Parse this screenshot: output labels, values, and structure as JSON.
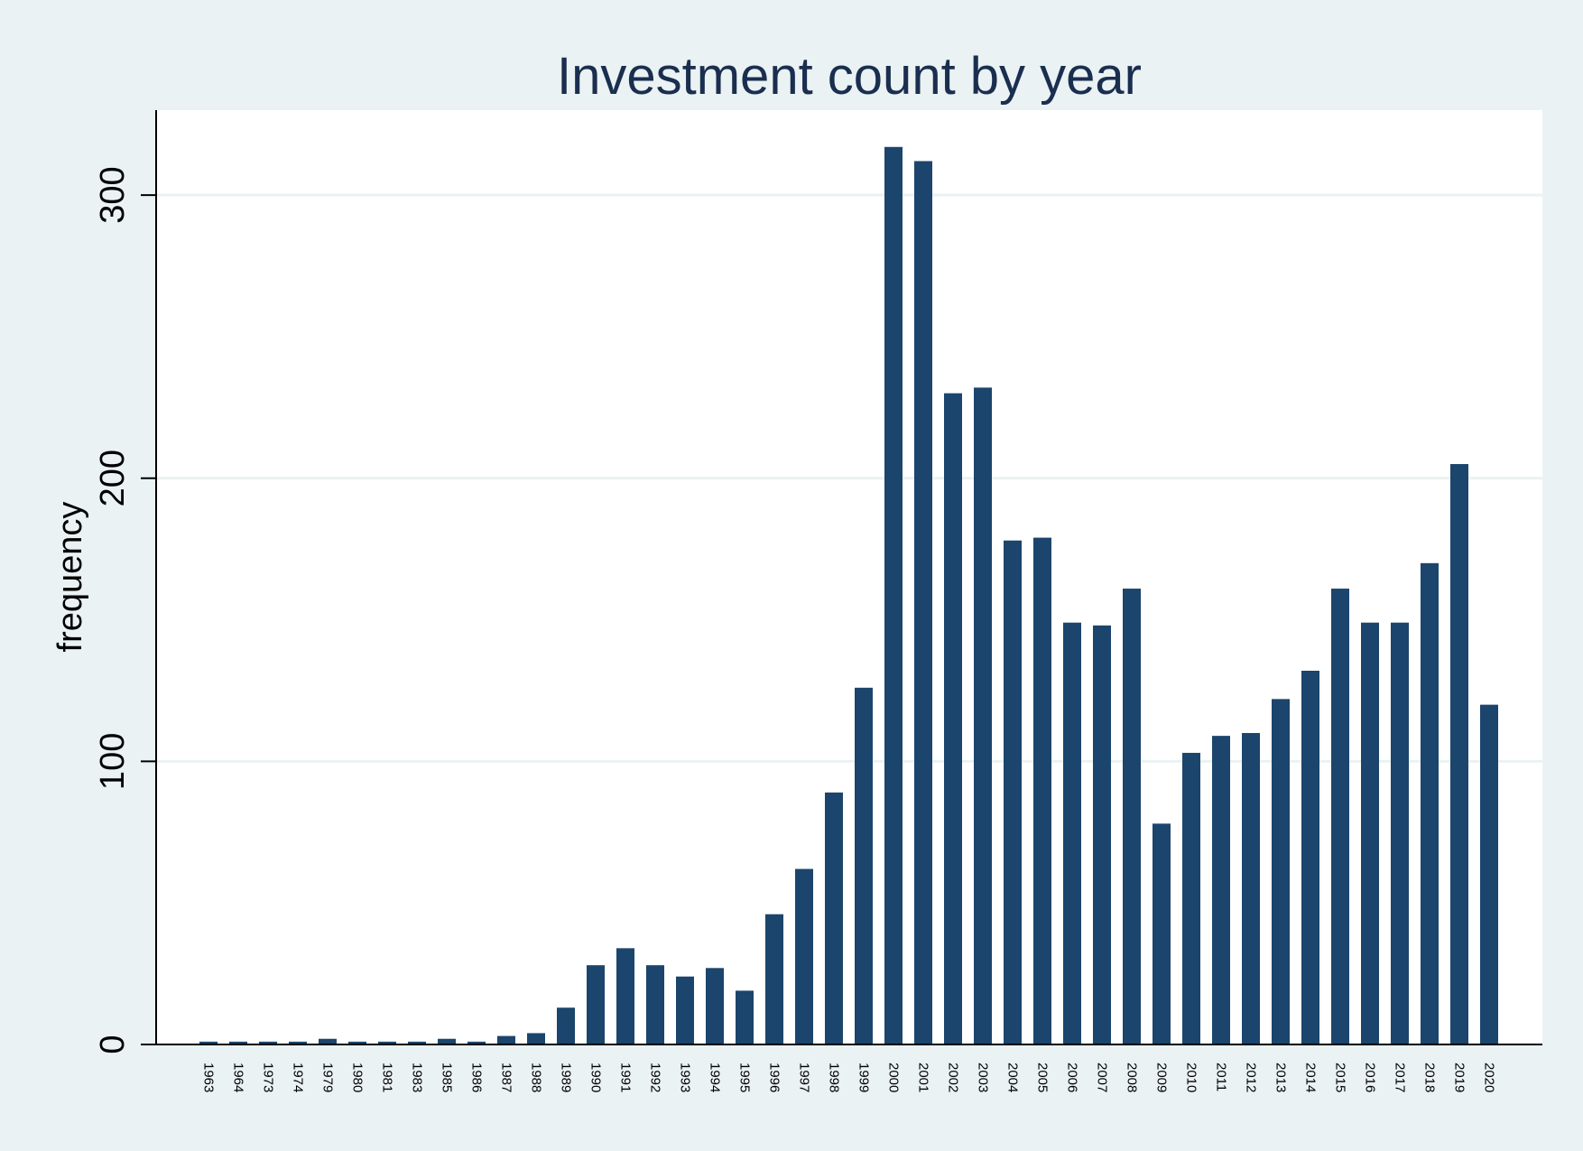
{
  "chart_data": {
    "type": "bar",
    "title": "Investment count by year",
    "xlabel": "",
    "ylabel": "frequency",
    "ylim": [
      0,
      330
    ],
    "yticks": [
      0,
      100,
      200,
      300
    ],
    "grid": true,
    "legend": "none",
    "categories": [
      "1963",
      "1964",
      "1973",
      "1974",
      "1979",
      "1980",
      "1981",
      "1983",
      "1985",
      "1986",
      "1987",
      "1988",
      "1989",
      "1990",
      "1991",
      "1992",
      "1993",
      "1994",
      "1995",
      "1996",
      "1997",
      "1998",
      "1999",
      "2000",
      "2001",
      "2002",
      "2003",
      "2004",
      "2005",
      "2006",
      "2007",
      "2008",
      "2009",
      "2010",
      "2011",
      "2012",
      "2013",
      "2014",
      "2015",
      "2016",
      "2017",
      "2018",
      "2019",
      "2020"
    ],
    "values": [
      1,
      1,
      1,
      1,
      2,
      1,
      1,
      1,
      2,
      1,
      3,
      4,
      13,
      28,
      34,
      28,
      24,
      27,
      19,
      46,
      62,
      89,
      126,
      317,
      312,
      230,
      232,
      178,
      179,
      149,
      148,
      161,
      78,
      103,
      109,
      110,
      122,
      132,
      161,
      149,
      149,
      170,
      205,
      120
    ],
    "colors": {
      "bar": "#1b456c",
      "background": "#eaf2f3",
      "plot": "#ffffff",
      "grid": "#eaf2f3",
      "axis": "#000000",
      "title": "#1a2e4f"
    }
  }
}
